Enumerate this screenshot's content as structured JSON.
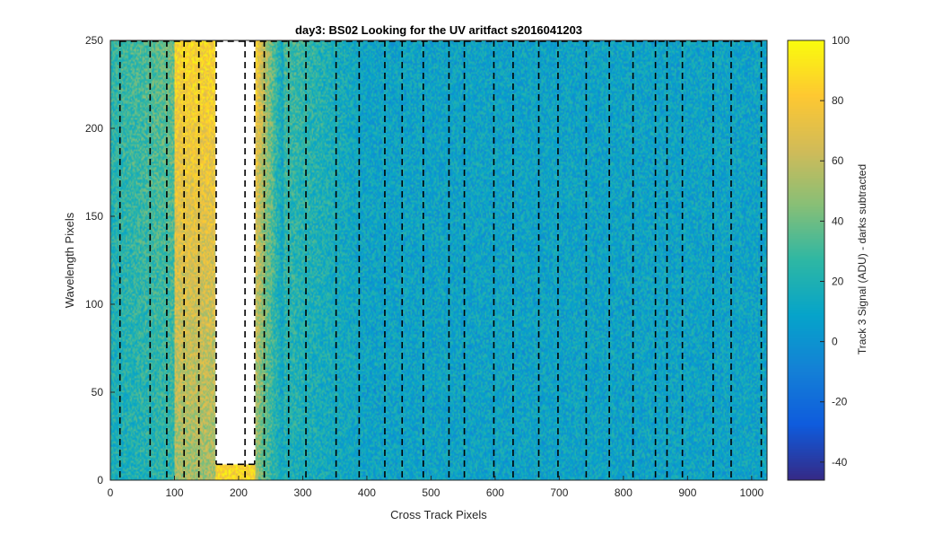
{
  "chart_data": {
    "type": "heatmap",
    "title": "day3: BS02  Looking for the UV aritfact  s2016041203",
    "xlabel": "Cross Track Pixels",
    "ylabel": "Wavelength Pixels",
    "xlim": [
      0,
      1024
    ],
    "ylim": [
      0,
      250
    ],
    "x_ticks": [
      0,
      100,
      200,
      300,
      400,
      500,
      600,
      700,
      800,
      900,
      1000
    ],
    "y_ticks": [
      0,
      50,
      100,
      150,
      200,
      250
    ],
    "colorbar": {
      "label": "Track 3 Signal (ADU) - darks subtracted",
      "range": [
        -46,
        100
      ],
      "ticks": [
        -40,
        -20,
        0,
        20,
        40,
        60,
        80,
        100
      ],
      "colormap": "parula",
      "colors": [
        "#352a87",
        "#0f5cdd",
        "#1481d6",
        "#06a4ca",
        "#2eb7a4",
        "#87bf77",
        "#d1bb59",
        "#fec832",
        "#f9fb0e"
      ]
    },
    "masked_region": {
      "x_start": 165,
      "x_end": 225,
      "y_start": 9,
      "y_end": 250
    },
    "dashed_boundaries_x": [
      15,
      62,
      88,
      115,
      138,
      165,
      210,
      225,
      240,
      278,
      305,
      352,
      388,
      428,
      455,
      488,
      528,
      552,
      598,
      628,
      668,
      698,
      742,
      778,
      815,
      850,
      868,
      892,
      940,
      968,
      1015
    ],
    "signal_model": {
      "baseline": 10,
      "bright_left_x_range": [
        100,
        165
      ],
      "bright_right_x_range": [
        225,
        270
      ],
      "bright_level": 85,
      "left_band_level": 40,
      "noise_amplitude": 16
    }
  }
}
